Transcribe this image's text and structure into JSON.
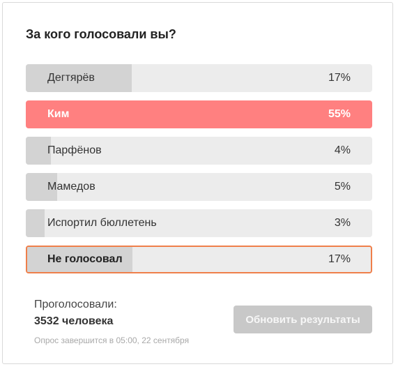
{
  "poll": {
    "title": "За кого голосовали вы?",
    "options": [
      {
        "label": "Дегтярёв",
        "percent_label": "17%",
        "percent": 17,
        "state": "normal"
      },
      {
        "label": "Ким",
        "percent_label": "55%",
        "percent": 55,
        "state": "winner"
      },
      {
        "label": "Парфёнов",
        "percent_label": "4%",
        "percent": 4,
        "state": "normal"
      },
      {
        "label": "Мамедов",
        "percent_label": "5%",
        "percent": 5,
        "state": "normal"
      },
      {
        "label": "Испортил бюллетень",
        "percent_label": "3%",
        "percent": 3,
        "state": "normal"
      },
      {
        "label": "Не голосовал",
        "percent_label": "17%",
        "percent": 17,
        "state": "selected"
      }
    ]
  },
  "footer": {
    "voted_label": "Проголосовали:",
    "voted_count": "3532 человека",
    "poll_end": "Опрос завершится в 05:00, 22 сентября",
    "refresh_label": "Обновить результаты"
  },
  "colors": {
    "winner": "#ff8080",
    "bar_track": "#ececec",
    "bar_fill": "#d3d3d3",
    "selected_border": "#ef7f4a",
    "button_disabled": "#c8c8c8"
  }
}
